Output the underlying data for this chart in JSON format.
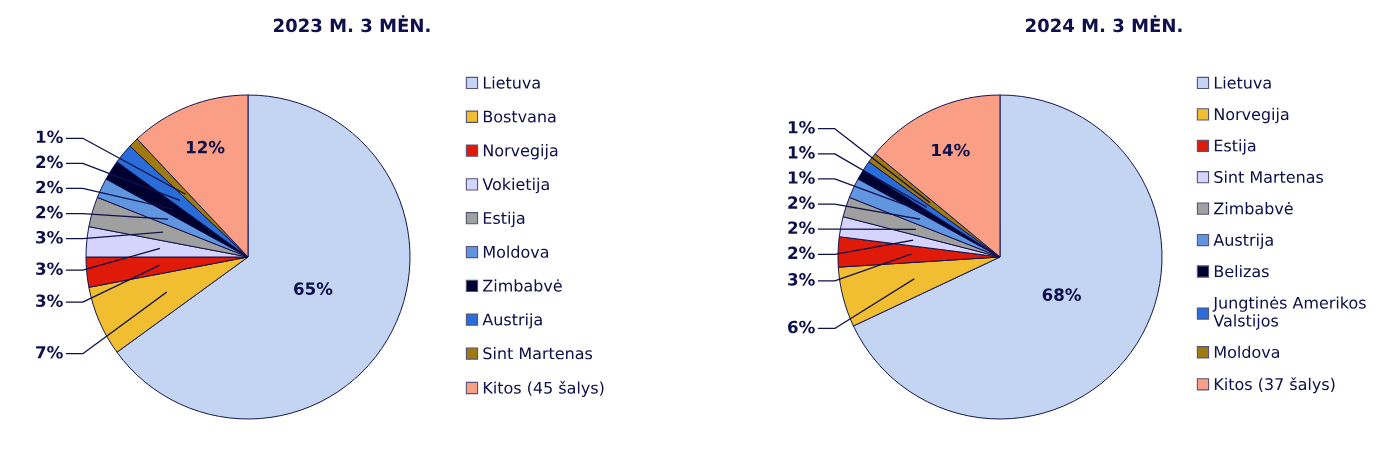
{
  "chart_data": [
    {
      "type": "pie",
      "title": "2023 M. 3 MĖN.",
      "legend": "right",
      "value_labels": [
        "65%",
        "7%",
        "3%",
        "3%",
        "3%",
        "2%",
        "2%",
        "2%",
        "1%",
        "12%"
      ],
      "categories": [
        "Lietuva",
        "Bostvana",
        "Norvegija",
        "Vokietija",
        "Estija",
        "Moldova",
        "Zimbabvė",
        "Austrija",
        "Sint Martenas",
        "Kitos (45 šalys)"
      ],
      "values": [
        65,
        7,
        3,
        3,
        3,
        2,
        2,
        2,
        1,
        12
      ],
      "colors": [
        "#c3d5f2",
        "#f0be30",
        "#e01a08",
        "#d4d4fc",
        "#a0a0a0",
        "#6095e0",
        "#000030",
        "#2a6dd8",
        "#9e7a10",
        "#fa9e86"
      ]
    },
    {
      "type": "pie",
      "title": "2024 M. 3 MĖN.",
      "legend": "right",
      "value_labels": [
        "68%",
        "6%",
        "3%",
        "2%",
        "2%",
        "2%",
        "1%",
        "1%",
        "1%",
        "14%"
      ],
      "categories": [
        "Lietuva",
        "Norvegija",
        "Estija",
        "Sint Martenas",
        "Zimbabvė",
        "Austrija",
        "Belizas",
        "Jungtinės Amerikos Valstijos",
        "Moldova",
        "Kitos (37 šalys)"
      ],
      "values": [
        68,
        6,
        3,
        2,
        2,
        2,
        1,
        1,
        1,
        14
      ],
      "colors": [
        "#c3d5f2",
        "#f0be30",
        "#e01a08",
        "#d4d4fc",
        "#a0a0a0",
        "#6095e0",
        "#000030",
        "#2a6dd8",
        "#9e7a10",
        "#fa9e86"
      ]
    }
  ]
}
